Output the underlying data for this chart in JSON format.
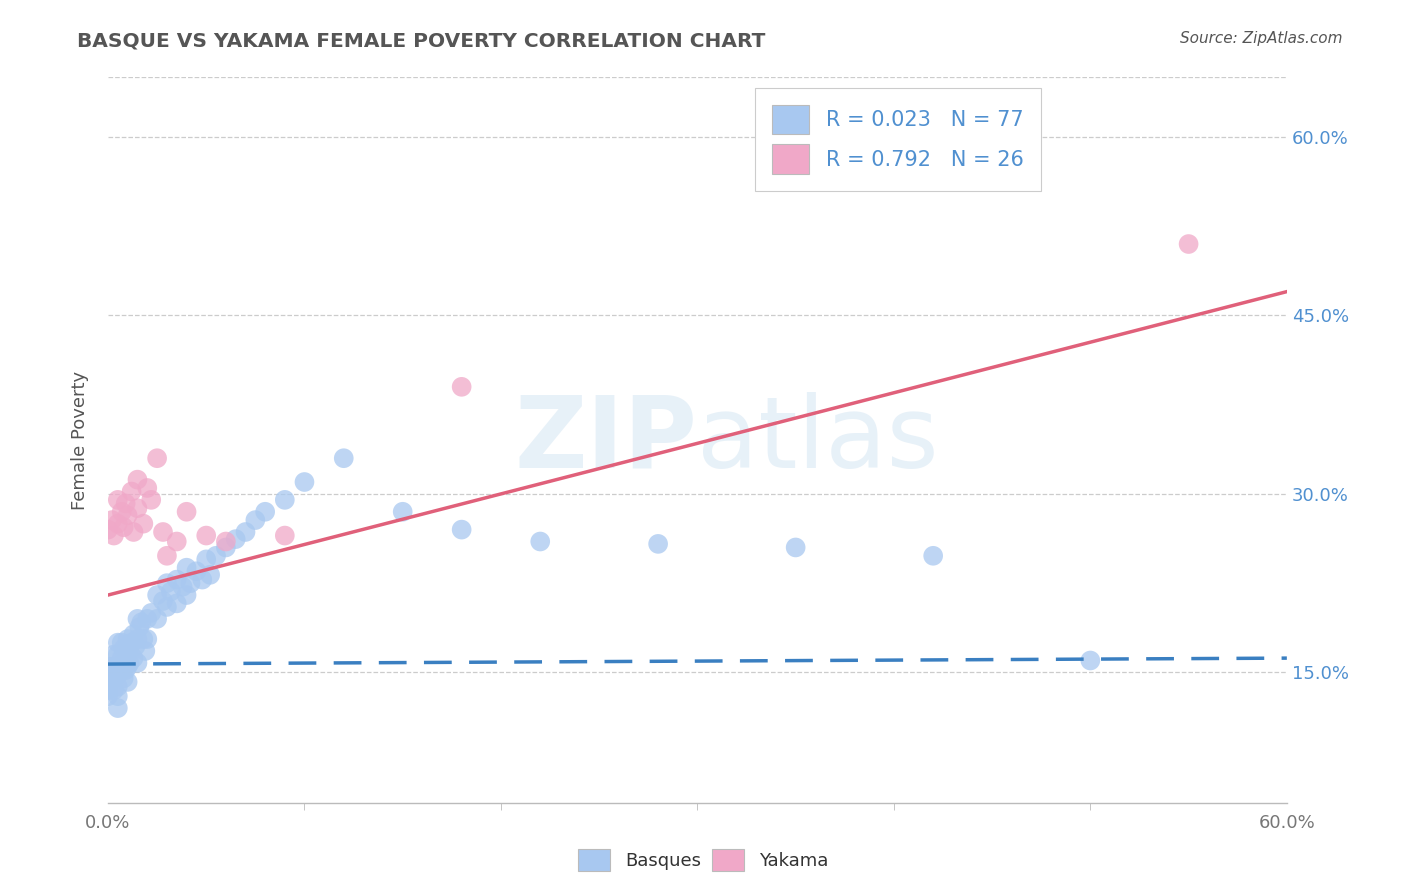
{
  "title": "BASQUE VS YAKAMA FEMALE POVERTY CORRELATION CHART",
  "source": "Source: ZipAtlas.com",
  "ylabel": "Female Poverty",
  "xlim": [
    0.0,
    0.6
  ],
  "ylim": [
    0.04,
    0.65
  ],
  "ytick_values": [
    0.15,
    0.3,
    0.45,
    0.6
  ],
  "watermark_text": "ZIPatlas",
  "legend_r_basques": "0.023",
  "legend_n_basques": "77",
  "legend_r_yakama": "0.792",
  "legend_n_yakama": "26",
  "basques_color": "#a8c8f0",
  "yakama_color": "#f0a8c8",
  "basques_line_color": "#3a7fc1",
  "yakama_line_color": "#e0607a",
  "background_color": "#ffffff",
  "grid_color": "#cccccc",
  "title_color": "#555555",
  "axis_label_color": "#555555",
  "tick_color": "#777777",
  "right_tick_color": "#5090d0",
  "legend_text_color": "#5090d0",
  "basques_x": [
    0.0,
    0.0,
    0.0,
    0.0,
    0.0,
    0.0,
    0.003,
    0.003,
    0.003,
    0.003,
    0.005,
    0.005,
    0.005,
    0.005,
    0.005,
    0.005,
    0.005,
    0.007,
    0.007,
    0.007,
    0.008,
    0.008,
    0.008,
    0.009,
    0.009,
    0.01,
    0.01,
    0.01,
    0.01,
    0.011,
    0.011,
    0.012,
    0.013,
    0.013,
    0.014,
    0.015,
    0.015,
    0.015,
    0.016,
    0.017,
    0.018,
    0.019,
    0.02,
    0.02,
    0.022,
    0.025,
    0.025,
    0.028,
    0.03,
    0.03,
    0.032,
    0.035,
    0.035,
    0.038,
    0.04,
    0.04,
    0.042,
    0.045,
    0.048,
    0.05,
    0.052,
    0.055,
    0.06,
    0.065,
    0.07,
    0.075,
    0.08,
    0.09,
    0.1,
    0.12,
    0.15,
    0.18,
    0.22,
    0.28,
    0.35,
    0.42,
    0.5
  ],
  "basques_y": [
    0.155,
    0.15,
    0.145,
    0.14,
    0.135,
    0.13,
    0.165,
    0.155,
    0.145,
    0.135,
    0.175,
    0.165,
    0.155,
    0.148,
    0.138,
    0.13,
    0.12,
    0.175,
    0.162,
    0.152,
    0.17,
    0.158,
    0.145,
    0.168,
    0.152,
    0.178,
    0.165,
    0.155,
    0.142,
    0.172,
    0.158,
    0.175,
    0.182,
    0.162,
    0.172,
    0.195,
    0.178,
    0.158,
    0.188,
    0.192,
    0.178,
    0.168,
    0.195,
    0.178,
    0.2,
    0.215,
    0.195,
    0.21,
    0.225,
    0.205,
    0.218,
    0.228,
    0.208,
    0.222,
    0.238,
    0.215,
    0.225,
    0.235,
    0.228,
    0.245,
    0.232,
    0.248,
    0.255,
    0.262,
    0.268,
    0.278,
    0.285,
    0.295,
    0.31,
    0.33,
    0.285,
    0.27,
    0.26,
    0.258,
    0.255,
    0.248,
    0.16
  ],
  "yakama_x": [
    0.0,
    0.002,
    0.003,
    0.005,
    0.005,
    0.007,
    0.008,
    0.009,
    0.01,
    0.012,
    0.013,
    0.015,
    0.015,
    0.018,
    0.02,
    0.022,
    0.025,
    0.028,
    0.03,
    0.035,
    0.04,
    0.05,
    0.06,
    0.09,
    0.18,
    0.55
  ],
  "yakama_y": [
    0.27,
    0.278,
    0.265,
    0.295,
    0.275,
    0.285,
    0.272,
    0.292,
    0.282,
    0.302,
    0.268,
    0.312,
    0.288,
    0.275,
    0.305,
    0.295,
    0.33,
    0.268,
    0.248,
    0.26,
    0.285,
    0.265,
    0.26,
    0.265,
    0.39,
    0.51
  ],
  "basques_line_x": [
    0.0,
    0.6
  ],
  "basques_line_y": [
    0.157,
    0.162
  ],
  "yakama_line_x": [
    0.0,
    0.6
  ],
  "yakama_line_y": [
    0.215,
    0.47
  ]
}
